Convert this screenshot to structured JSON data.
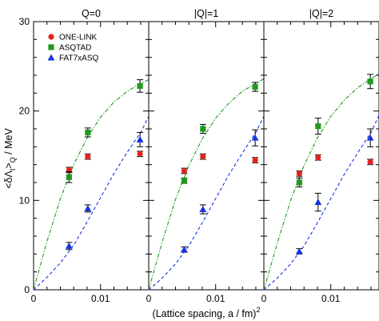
{
  "chart_data": {
    "type": "scatter",
    "xlabel": "(Lattice spacing, a / fm)",
    "xlabel_superscript": "2",
    "ylabel": "<δΛ",
    "ylabel_sub1": "I",
    "ylabel_mid": ">",
    "ylabel_sub2": "Q",
    "ylabel_tail": " / MeV",
    "xlim": [
      0,
      0.0172
    ],
    "ylim": [
      0,
      30
    ],
    "x_ticks": [
      0,
      0.01
    ],
    "x_tick_labels": [
      "0",
      "0.01"
    ],
    "y_ticks": [
      0,
      10,
      20,
      30
    ],
    "y_tick_labels": [
      "0",
      "10",
      "20",
      "30"
    ],
    "grid": false,
    "legend_position": "top-left of first panel",
    "legend": [
      {
        "label": "ONE-LINK",
        "color": "#e3231d",
        "marker": "circle"
      },
      {
        "label": "ASQTAD",
        "color": "#1f9a1f",
        "marker": "square"
      },
      {
        "label": "FAT7xASQ",
        "color": "#1733e0",
        "marker": "triangle"
      }
    ],
    "panels": [
      {
        "title": "Q=0",
        "series": [
          {
            "name": "ONE-LINK",
            "color": "#e3231d",
            "marker": "circle",
            "x": [
              0.0053,
              0.0081,
              0.0159
            ],
            "y": [
              13.4,
              14.9,
              15.2
            ],
            "err": [
              0.3,
              0.3,
              0.3
            ]
          },
          {
            "name": "ASQTAD",
            "color": "#1f9a1f",
            "marker": "square",
            "x": [
              0.0053,
              0.0081,
              0.0159
            ],
            "y": [
              12.6,
              17.6,
              22.8
            ],
            "err": [
              0.6,
              0.5,
              0.7
            ]
          },
          {
            "name": "FAT7xASQ",
            "color": "#1733e0",
            "marker": "triangle",
            "x": [
              0.0053,
              0.0081,
              0.0159
            ],
            "y": [
              4.9,
              9.1,
              16.8
            ],
            "err": [
              0.4,
              0.4,
              0.8
            ]
          }
        ],
        "fits": [
          {
            "color": "#1f9a1f",
            "style": "dash-dot",
            "x": [
              0,
              0.002,
              0.004,
              0.006,
              0.008,
              0.01,
              0.012,
              0.014,
              0.016,
              0.0172
            ],
            "y": [
              0,
              5.4,
              10.2,
              14.0,
              17.0,
              19.3,
              21.0,
              22.2,
              23.1,
              23.5
            ]
          },
          {
            "color": "#1733e0",
            "style": "dashed",
            "x": [
              0,
              0.002,
              0.004,
              0.006,
              0.008,
              0.01,
              0.012,
              0.014,
              0.016,
              0.0172
            ],
            "y": [
              0,
              1.4,
              3.0,
              5.0,
              7.6,
              10.3,
              13.0,
              15.4,
              17.6,
              19.4
            ]
          }
        ]
      },
      {
        "title": "|Q|=1",
        "series": [
          {
            "name": "ONE-LINK",
            "color": "#e3231d",
            "marker": "circle",
            "x": [
              0.0053,
              0.0081,
              0.0159
            ],
            "y": [
              13.3,
              14.9,
              14.5
            ],
            "err": [
              0.3,
              0.3,
              0.3
            ]
          },
          {
            "name": "ASQTAD",
            "color": "#1f9a1f",
            "marker": "square",
            "x": [
              0.0053,
              0.0081,
              0.0159
            ],
            "y": [
              12.2,
              18.0,
              22.7
            ],
            "err": [
              0.3,
              0.5,
              0.5
            ]
          },
          {
            "name": "FAT7xASQ",
            "color": "#1733e0",
            "marker": "triangle",
            "x": [
              0.0053,
              0.0081,
              0.0159
            ],
            "y": [
              4.5,
              9.0,
              17.0
            ],
            "err": [
              0.3,
              0.5,
              0.9
            ]
          }
        ],
        "fits": [
          {
            "color": "#1f9a1f",
            "style": "dash-dot",
            "x": [
              0,
              0.002,
              0.004,
              0.006,
              0.008,
              0.01,
              0.012,
              0.014,
              0.016,
              0.0172
            ],
            "y": [
              0,
              5.3,
              10.1,
              13.9,
              16.9,
              19.2,
              20.9,
              22.2,
              23.1,
              23.6
            ]
          },
          {
            "color": "#1733e0",
            "style": "dashed",
            "x": [
              0,
              0.002,
              0.004,
              0.006,
              0.008,
              0.01,
              0.012,
              0.014,
              0.016,
              0.0172
            ],
            "y": [
              0,
              1.3,
              2.9,
              4.9,
              7.5,
              10.2,
              12.9,
              15.3,
              17.6,
              19.4
            ]
          }
        ]
      },
      {
        "title": "|Q|=2",
        "series": [
          {
            "name": "ONE-LINK",
            "color": "#e3231d",
            "marker": "circle",
            "x": [
              0.0053,
              0.0081,
              0.0159
            ],
            "y": [
              13.0,
              14.8,
              14.3
            ],
            "err": [
              0.3,
              0.3,
              0.3
            ]
          },
          {
            "name": "ASQTAD",
            "color": "#1f9a1f",
            "marker": "square",
            "x": [
              0.0053,
              0.0081,
              0.0159
            ],
            "y": [
              12.0,
              18.3,
              23.3
            ],
            "err": [
              0.5,
              0.9,
              0.8
            ]
          },
          {
            "name": "FAT7xASQ",
            "color": "#1733e0",
            "marker": "triangle",
            "x": [
              0.0053,
              0.0081,
              0.0159
            ],
            "y": [
              4.3,
              9.8,
              17.0
            ],
            "err": [
              0.3,
              1.0,
              1.0
            ]
          }
        ],
        "fits": [
          {
            "color": "#1f9a1f",
            "style": "dash-dot",
            "x": [
              0,
              0.002,
              0.004,
              0.006,
              0.008,
              0.01,
              0.012,
              0.014,
              0.016,
              0.0172
            ],
            "y": [
              0,
              5.2,
              10.0,
              13.9,
              17.0,
              19.4,
              21.2,
              22.6,
              23.6,
              24.2
            ]
          },
          {
            "color": "#1733e0",
            "style": "dashed",
            "x": [
              0,
              0.002,
              0.004,
              0.006,
              0.008,
              0.01,
              0.012,
              0.014,
              0.016,
              0.0172
            ],
            "y": [
              0,
              1.3,
              2.9,
              4.9,
              7.5,
              10.2,
              12.9,
              15.3,
              17.6,
              19.5
            ]
          }
        ]
      }
    ]
  }
}
